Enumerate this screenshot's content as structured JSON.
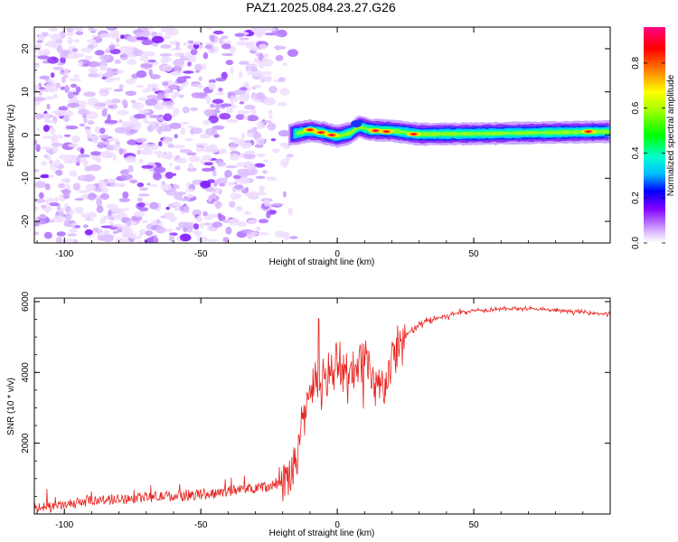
{
  "title": "PAZ1.2025.084.23.27.G26",
  "colorbar": {
    "label": "Normalized spectral amplitude",
    "ticks": [
      "0.0",
      "0.2",
      "0.4",
      "0.6",
      "0.8"
    ],
    "tick_values": [
      0.0,
      0.2,
      0.4,
      0.6,
      0.8
    ],
    "range": [
      0,
      0.96
    ],
    "colors": [
      "#ffffff",
      "#e6ccff",
      "#b266ff",
      "#7f00ff",
      "#0000ff",
      "#00bfff",
      "#00ffcc",
      "#00ff00",
      "#aaff00",
      "#ffff00",
      "#ff8000",
      "#ff0000",
      "#ff0080"
    ]
  },
  "chart_data": [
    {
      "type": "heatmap",
      "xlabel": "Height of straight line (km)",
      "ylabel": "Frequency (Hz)",
      "xlim": [
        -111,
        100
      ],
      "ylim": [
        -25,
        25
      ],
      "xticks": [
        -100,
        -50,
        0,
        50
      ],
      "yticks": [
        -20,
        -10,
        0,
        10,
        20
      ],
      "noise_region_x": [
        -111,
        -17
      ],
      "signal_band": {
        "x_range": [
          -18,
          100
        ],
        "freq_center": [
          [
            -18,
            0.0
          ],
          [
            -10,
            1.0
          ],
          [
            -5,
            0.5
          ],
          [
            0,
            -0.3
          ],
          [
            5,
            0.5
          ],
          [
            8,
            2.0
          ],
          [
            12,
            1.2
          ],
          [
            20,
            1.0
          ],
          [
            30,
            0.2
          ],
          [
            50,
            0.3
          ],
          [
            100,
            0.8
          ]
        ],
        "peaks": [
          {
            "x": -10,
            "freq": 1.2,
            "amplitude": 0.9
          },
          {
            "x": -6,
            "freq": 0.6,
            "amplitude": 0.85
          },
          {
            "x": -2,
            "freq": 0.0,
            "amplitude": 0.8
          },
          {
            "x": 14,
            "freq": 1.0,
            "amplitude": 0.85
          },
          {
            "x": 18,
            "freq": 0.8,
            "amplitude": 0.85
          },
          {
            "x": 28,
            "freq": 0.2,
            "amplitude": 0.8
          },
          {
            "x": 92,
            "freq": 0.8,
            "amplitude": 0.85
          }
        ]
      }
    },
    {
      "type": "line",
      "xlabel": "Height of straight line (km)",
      "ylabel": "SNR (10 * v/v)",
      "xlim": [
        -111,
        100
      ],
      "ylim": [
        0,
        6100
      ],
      "xticks": [
        -100,
        -50,
        0,
        50
      ],
      "yticks": [
        2000,
        4000,
        6000
      ],
      "color": "#e8231e",
      "series": [
        {
          "x": [
            -111,
            -100,
            -90,
            -80,
            -70,
            -60,
            -50,
            -45,
            -40,
            -35,
            -30,
            -25,
            -20,
            -16,
            -14,
            -12,
            -10,
            -8,
            -6,
            -4,
            -2,
            0,
            2,
            4,
            6,
            8,
            10,
            12,
            14,
            16,
            18,
            20,
            22,
            24,
            26,
            28,
            30,
            35,
            40,
            45,
            50,
            60,
            70,
            80,
            90,
            100
          ],
          "y": [
            150,
            250,
            380,
            420,
            480,
            500,
            560,
            600,
            650,
            700,
            750,
            800,
            850,
            1200,
            2000,
            2800,
            3600,
            3700,
            3500,
            3800,
            4100,
            4200,
            4000,
            3900,
            4000,
            4300,
            4600,
            3900,
            3600,
            3500,
            3800,
            4300,
            4700,
            4900,
            5100,
            5200,
            5350,
            5500,
            5600,
            5700,
            5750,
            5800,
            5800,
            5750,
            5700,
            5650
          ]
        }
      ]
    }
  ]
}
